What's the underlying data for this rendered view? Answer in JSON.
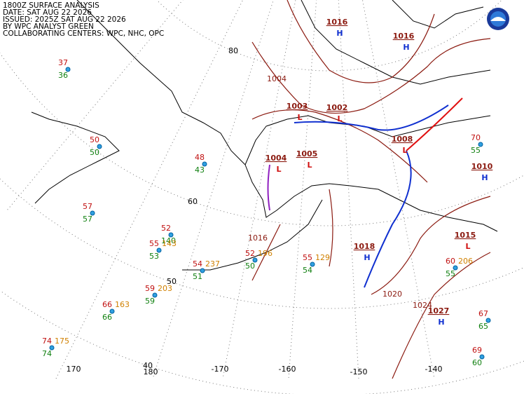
{
  "header": [
    "1800Z SURFACE ANALYSIS",
    "DATE: SAT AUG 22 2026",
    "ISSUED: 2025Z SAT AUG 22 2026",
    "BY WPC ANALYST GREEN",
    "COLLABORATING CENTERS: WPC, NHC, OPC"
  ],
  "latitude_labels": [
    "80",
    "60",
    "50",
    "40"
  ],
  "longitude_labels": [
    "170",
    "180",
    "-170",
    "-160",
    "-150",
    "-140"
  ],
  "pressure_centers": [
    {
      "symbol": "H",
      "pressure": 1016
    },
    {
      "symbol": "H",
      "pressure": 1016
    },
    {
      "symbol": "L",
      "pressure": 1003
    },
    {
      "symbol": "L",
      "pressure": 1002
    },
    {
      "symbol": "L",
      "pressure": 1005
    },
    {
      "symbol": "L",
      "pressure": 1004
    },
    {
      "symbol": "L",
      "pressure": 1008
    },
    {
      "symbol": "H",
      "pressure": 1018
    },
    {
      "symbol": "H",
      "pressure": 1027
    },
    {
      "symbol": "L",
      "pressure": 1015
    },
    {
      "symbol": "H",
      "pressure": 1010
    }
  ],
  "isobar_labels": [
    1004,
    1020,
    1024,
    1016
  ],
  "stations": [
    {
      "temperature": 37,
      "dewpoint": 36
    },
    {
      "temperature": 50,
      "dewpoint": 50
    },
    {
      "temperature": 57,
      "dewpoint": 57
    },
    {
      "temperature": 48,
      "dewpoint": 43
    },
    {
      "temperature": 52,
      "dewpoint": 140
    },
    {
      "temperature": 55,
      "dewpoint": 53,
      "pressure": 143
    },
    {
      "temperature": 54,
      "dewpoint": 51,
      "pressure": 237
    },
    {
      "temperature": 59,
      "dewpoint": 59,
      "pressure": 203
    },
    {
      "temperature": 66,
      "dewpoint": 66,
      "pressure": 163
    },
    {
      "temperature": 74,
      "dewpoint": 74,
      "pressure": 175
    },
    {
      "temperature": 70,
      "dewpoint": 55
    },
    {
      "temperature": 60,
      "dewpoint": 55,
      "pressure": 206
    },
    {
      "temperature": 67,
      "dewpoint": 65
    },
    {
      "temperature": 69,
      "dewpoint": 60
    },
    {
      "temperature": 55,
      "dewpoint": 54,
      "pressure": 129
    },
    {
      "temperature": 52,
      "dewpoint": 50,
      "pressure": 196
    }
  ]
}
